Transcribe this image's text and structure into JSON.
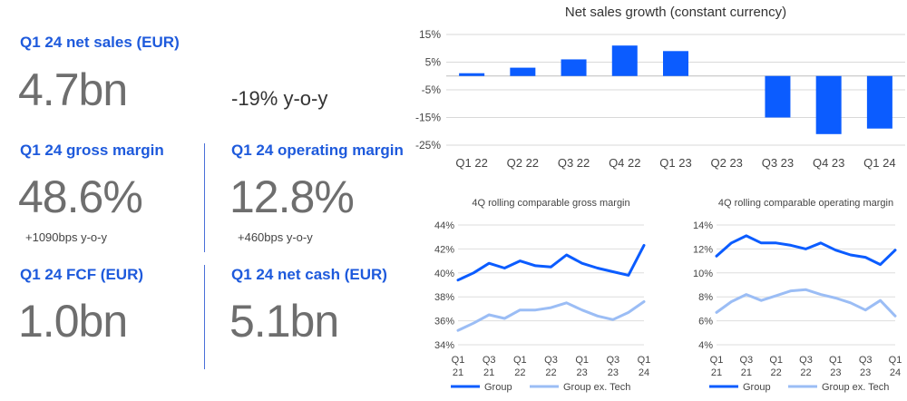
{
  "kpis": {
    "net_sales": {
      "label": "Q1 24 net sales (EUR)",
      "value": "4.7bn",
      "yoy": "-19% y-o-y"
    },
    "gross_margin": {
      "label": "Q1 24 gross margin",
      "value": "48.6%",
      "sub": "+1090bps y-o-y"
    },
    "operating_margin": {
      "label": "Q1 24 operating margin",
      "value": "12.8%",
      "sub": "+460bps y-o-y"
    },
    "fcf": {
      "label": "Q1 24 FCF (EUR)",
      "value": "1.0bn"
    },
    "net_cash": {
      "label": "Q1 24 net cash (EUR)",
      "value": "5.1bn"
    }
  },
  "colors": {
    "accent": "#1e5adc",
    "bar": "#0b5cff",
    "group": "#0b5cff",
    "group_ex_tech": "#9bbdf5",
    "value_grey": "#6e6e6e"
  },
  "chart_data": [
    {
      "type": "bar",
      "title": "Net sales growth (constant currency)",
      "categories": [
        "Q1 22",
        "Q2 22",
        "Q3 22",
        "Q4 22",
        "Q1 23",
        "Q2 23",
        "Q3 23",
        "Q4 23",
        "Q1 24"
      ],
      "values": [
        1,
        3,
        6,
        11,
        9,
        0,
        -15,
        -21,
        -19
      ],
      "ylim": [
        -25,
        15
      ],
      "yticks": [
        "15%",
        "5%",
        "-5%",
        "-15%",
        "-25%"
      ],
      "ytick_values": [
        15,
        5,
        -5,
        -15,
        -25
      ]
    },
    {
      "type": "line",
      "title": "4Q rolling comparable gross margin",
      "x_labels": [
        [
          "Q1",
          "21"
        ],
        [
          "Q3",
          "21"
        ],
        [
          "Q1",
          "22"
        ],
        [
          "Q3",
          "22"
        ],
        [
          "Q1",
          "23"
        ],
        [
          "Q3",
          "23"
        ],
        [
          "Q1",
          "24"
        ]
      ],
      "ylim": [
        34,
        44
      ],
      "yticks": [
        "44%",
        "42%",
        "40%",
        "38%",
        "36%",
        "34%"
      ],
      "ytick_values": [
        44,
        42,
        40,
        38,
        36,
        34
      ],
      "series": [
        {
          "name": "Group",
          "values": [
            39.4,
            40.0,
            40.8,
            40.4,
            41.0,
            40.6,
            40.5,
            41.5,
            40.8,
            40.4,
            40.1,
            39.8,
            42.3
          ]
        },
        {
          "name": "Group ex. Tech",
          "values": [
            35.2,
            35.8,
            36.5,
            36.2,
            36.9,
            36.9,
            37.1,
            37.5,
            36.9,
            36.4,
            36.1,
            36.7,
            37.6
          ]
        }
      ]
    },
    {
      "type": "line",
      "title": "4Q rolling comparable operating margin",
      "x_labels": [
        [
          "Q1",
          "21"
        ],
        [
          "Q3",
          "21"
        ],
        [
          "Q1",
          "22"
        ],
        [
          "Q3",
          "22"
        ],
        [
          "Q1",
          "23"
        ],
        [
          "Q3",
          "23"
        ],
        [
          "Q1",
          "24"
        ]
      ],
      "ylim": [
        4,
        14
      ],
      "yticks": [
        "14%",
        "12%",
        "10%",
        "8%",
        "6%",
        "4%"
      ],
      "ytick_values": [
        14,
        12,
        10,
        8,
        6,
        4
      ],
      "series": [
        {
          "name": "Group",
          "values": [
            11.4,
            12.5,
            13.1,
            12.5,
            12.5,
            12.3,
            12.0,
            12.5,
            11.9,
            11.5,
            11.3,
            10.7,
            11.9
          ]
        },
        {
          "name": "Group ex. Tech",
          "values": [
            6.7,
            7.6,
            8.2,
            7.7,
            8.1,
            8.5,
            8.6,
            8.2,
            7.9,
            7.5,
            6.9,
            7.7,
            6.4
          ]
        }
      ]
    }
  ]
}
